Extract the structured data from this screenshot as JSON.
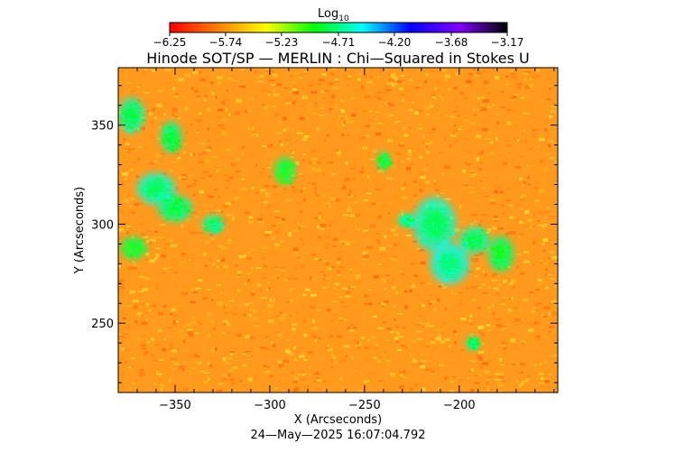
{
  "chart_data": {
    "type": "heatmap",
    "title": "Hinode SOT/SP — MERLIN : Chi—Squared in Stokes U",
    "xlabel": "X (Arcseconds)",
    "ylabel": "Y (Arcseconds)",
    "footer": "24—May—2025 16:07:04.792",
    "colorbar": {
      "label_main": "Log",
      "label_sub": "10",
      "range": [
        -6.25,
        -3.17
      ],
      "tick_labels": [
        "−6.25",
        "−5.74",
        "−5.23",
        "−4.71",
        "−4.20",
        "−3.68",
        "−3.17"
      ],
      "tick_values": [
        -6.25,
        -5.74,
        -5.23,
        -4.71,
        -4.2,
        -3.68,
        -3.17
      ],
      "colormap": [
        "#ff0000",
        "#ff8000",
        "#ffff00",
        "#00ff00",
        "#00ffff",
        "#0000ff",
        "#8000ff",
        "#000000"
      ]
    },
    "xlim": [
      -380,
      -148
    ],
    "ylim": [
      215,
      379
    ],
    "x_ticks": [
      -350,
      -300,
      -250,
      -200
    ],
    "x_tick_labels": [
      "−350",
      "−300",
      "−250",
      "−200"
    ],
    "y_ticks": [
      250,
      300,
      350
    ],
    "y_tick_labels": [
      "250",
      "300",
      "350"
    ],
    "background_value": -6.0,
    "green_patches": [
      {
        "x": -373,
        "y": 355,
        "rx": 6,
        "ry": 8,
        "value": -4.85
      },
      {
        "x": -352,
        "y": 344,
        "rx": 5,
        "ry": 7,
        "value": -4.9
      },
      {
        "x": -360,
        "y": 318,
        "rx": 9,
        "ry": 7,
        "value": -4.8
      },
      {
        "x": -350,
        "y": 308,
        "rx": 8,
        "ry": 6,
        "value": -4.9
      },
      {
        "x": -330,
        "y": 300,
        "rx": 5,
        "ry": 4,
        "value": -4.85
      },
      {
        "x": -372,
        "y": 288,
        "rx": 6,
        "ry": 5,
        "value": -5.0
      },
      {
        "x": -292,
        "y": 327,
        "rx": 5,
        "ry": 6,
        "value": -5.0
      },
      {
        "x": -213,
        "y": 300,
        "rx": 10,
        "ry": 12,
        "value": -4.8
      },
      {
        "x": -205,
        "y": 280,
        "rx": 9,
        "ry": 9,
        "value": -4.75
      },
      {
        "x": -192,
        "y": 292,
        "rx": 7,
        "ry": 6,
        "value": -4.85
      },
      {
        "x": -178,
        "y": 285,
        "rx": 6,
        "ry": 8,
        "value": -4.95
      },
      {
        "x": -228,
        "y": 302,
        "rx": 4,
        "ry": 3,
        "value": -4.85
      },
      {
        "x": -193,
        "y": 240,
        "rx": 3,
        "ry": 3,
        "value": -4.9
      },
      {
        "x": -240,
        "y": 332,
        "rx": 3,
        "ry": 4,
        "value": -4.95
      }
    ]
  }
}
